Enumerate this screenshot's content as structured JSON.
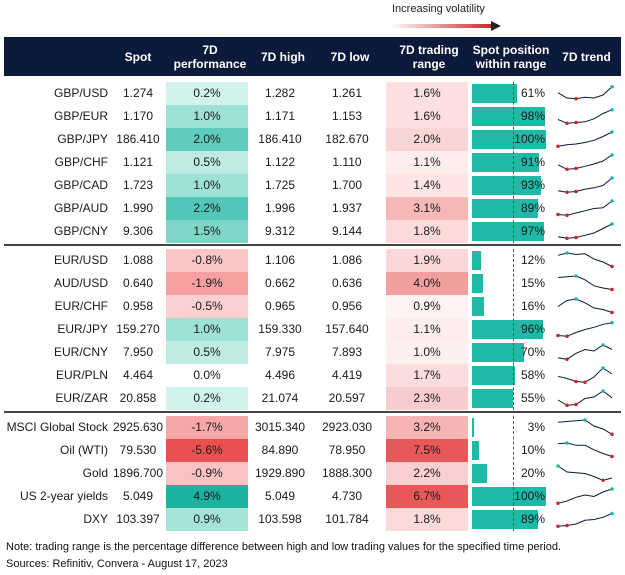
{
  "header_note": "Increasing volatility",
  "columns": {
    "spot": "Spot",
    "perf_line1": "7D",
    "perf_line2": "performance",
    "high": "7D high",
    "low": "7D low",
    "range_line1": "7D trading",
    "range_line2": "range",
    "pos_line1": "Spot position",
    "pos_line2": "within range",
    "trend": "7D trend"
  },
  "groups": [
    {
      "rows": [
        {
          "name": "GBP/USD",
          "spot": "1.274",
          "perf": "0.2%",
          "perf_val": 0.2,
          "high": "1.282",
          "low": "1.261",
          "range": "1.6%",
          "range_val": 1.6,
          "pos": "61%",
          "pos_val": 61,
          "trend": [
            0.55,
            0.2,
            0.15,
            0.25,
            0.2,
            0.4,
            0.95
          ]
        },
        {
          "name": "GBP/EUR",
          "spot": "1.170",
          "perf": "1.0%",
          "perf_val": 1.0,
          "high": "1.171",
          "low": "1.153",
          "range": "1.6%",
          "range_val": 1.6,
          "pos": "98%",
          "pos_val": 98,
          "trend": [
            0.3,
            0.05,
            0.1,
            0.15,
            0.35,
            0.7,
            0.95
          ]
        },
        {
          "name": "GBP/JPY",
          "spot": "186.410",
          "perf": "2.0%",
          "perf_val": 2.0,
          "high": "186.410",
          "low": "182.670",
          "range": "2.0%",
          "range_val": 2.0,
          "pos": "100%",
          "pos_val": 100,
          "trend": [
            0.05,
            0.15,
            0.2,
            0.3,
            0.45,
            0.7,
            1.0
          ]
        },
        {
          "name": "GBP/CHF",
          "spot": "1.121",
          "perf": "0.5%",
          "perf_val": 0.5,
          "high": "1.122",
          "low": "1.110",
          "range": "1.1%",
          "range_val": 1.1,
          "pos": "91%",
          "pos_val": 91,
          "trend": [
            0.35,
            0.05,
            0.1,
            0.25,
            0.4,
            0.6,
            1.0
          ]
        },
        {
          "name": "GBP/CAD",
          "spot": "1.723",
          "perf": "1.0%",
          "perf_val": 1.0,
          "high": "1.725",
          "low": "1.700",
          "range": "1.4%",
          "range_val": 1.4,
          "pos": "93%",
          "pos_val": 93,
          "trend": [
            0.15,
            0.05,
            0.1,
            0.25,
            0.35,
            0.5,
            1.0
          ]
        },
        {
          "name": "GBP/AUD",
          "spot": "1.990",
          "perf": "2.2%",
          "perf_val": 2.2,
          "high": "1.996",
          "low": "1.937",
          "range": "3.1%",
          "range_val": 3.1,
          "pos": "89%",
          "pos_val": 89,
          "trend": [
            0.1,
            0.05,
            0.2,
            0.35,
            0.5,
            0.55,
            1.0
          ]
        },
        {
          "name": "GBP/CNY",
          "spot": "9.306",
          "perf": "1.5%",
          "perf_val": 1.5,
          "high": "9.312",
          "low": "9.144",
          "range": "1.8%",
          "range_val": 1.8,
          "pos": "97%",
          "pos_val": 97,
          "trend": [
            0.15,
            0.05,
            0.1,
            0.25,
            0.4,
            0.7,
            1.0
          ]
        }
      ]
    },
    {
      "rows": [
        {
          "name": "EUR/USD",
          "spot": "1.088",
          "perf": "-0.8%",
          "perf_val": -0.8,
          "high": "1.106",
          "low": "1.086",
          "range": "1.9%",
          "range_val": 1.9,
          "pos": "12%",
          "pos_val": 12,
          "trend": [
            0.85,
            1.0,
            0.9,
            0.95,
            0.6,
            0.4,
            0.1
          ]
        },
        {
          "name": "AUD/USD",
          "spot": "0.640",
          "perf": "-1.9%",
          "perf_val": -1.9,
          "high": "0.662",
          "low": "0.636",
          "range": "4.0%",
          "range_val": 4.0,
          "pos": "15%",
          "pos_val": 15,
          "trend": [
            0.9,
            0.95,
            1.0,
            0.75,
            0.35,
            0.2,
            0.1
          ]
        },
        {
          "name": "EUR/CHF",
          "spot": "0.958",
          "perf": "-0.5%",
          "perf_val": -0.5,
          "high": "0.965",
          "low": "0.956",
          "range": "0.9%",
          "range_val": 0.9,
          "pos": "16%",
          "pos_val": 16,
          "trend": [
            0.5,
            0.9,
            1.0,
            0.75,
            0.4,
            0.3,
            0.1
          ]
        },
        {
          "name": "EUR/JPY",
          "spot": "159.270",
          "perf": "1.0%",
          "perf_val": 1.0,
          "high": "159.330",
          "low": "157.640",
          "range": "1.1%",
          "range_val": 1.1,
          "pos": "96%",
          "pos_val": 96,
          "trend": [
            0.1,
            0.05,
            0.3,
            0.5,
            0.65,
            0.85,
            0.95
          ]
        },
        {
          "name": "EUR/CNY",
          "spot": "7.950",
          "perf": "0.5%",
          "perf_val": 0.5,
          "high": "7.975",
          "low": "7.893",
          "range": "1.0%",
          "range_val": 1.0,
          "pos": "70%",
          "pos_val": 70,
          "trend": [
            0.15,
            0.05,
            0.45,
            0.7,
            0.6,
            1.0,
            0.7
          ]
        },
        {
          "name": "EUR/PLN",
          "spot": "4.464",
          "perf": "0.0%",
          "perf_val": 0.0,
          "high": "4.496",
          "low": "4.419",
          "range": "1.7%",
          "range_val": 1.7,
          "pos": "58%",
          "pos_val": 58,
          "trend": [
            0.45,
            0.3,
            0.1,
            0.05,
            0.4,
            1.0,
            0.6
          ]
        },
        {
          "name": "EUR/ZAR",
          "spot": "20.858",
          "perf": "0.2%",
          "perf_val": 0.2,
          "high": "21.074",
          "low": "20.597",
          "range": "2.3%",
          "range_val": 2.3,
          "pos": "55%",
          "pos_val": 55,
          "trend": [
            0.4,
            0.05,
            0.1,
            0.5,
            0.6,
            1.0,
            0.55
          ]
        }
      ]
    },
    {
      "rows": [
        {
          "name": "MSCI Global Stock",
          "spot": "2925.630",
          "perf": "-1.7%",
          "perf_val": -1.7,
          "high": "3015.340",
          "low": "2923.030",
          "range": "3.2%",
          "range_val": 3.2,
          "pos": "3%",
          "pos_val": 3,
          "trend": [
            0.85,
            0.9,
            0.95,
            1.0,
            0.6,
            0.4,
            0.05
          ]
        },
        {
          "name": "Oil (WTI)",
          "spot": "79.530",
          "perf": "-5.6%",
          "perf_val": -5.6,
          "high": "84.890",
          "low": "78.950",
          "range": "7.5%",
          "range_val": 7.5,
          "pos": "10%",
          "pos_val": 10,
          "trend": [
            0.95,
            1.0,
            0.85,
            0.85,
            0.55,
            0.3,
            0.1
          ]
        },
        {
          "name": "Gold",
          "spot": "1896.700",
          "perf": "-0.9%",
          "perf_val": -0.9,
          "high": "1929.890",
          "low": "1888.300",
          "range": "2.2%",
          "range_val": 2.2,
          "pos": "20%",
          "pos_val": 20,
          "trend": [
            1.0,
            0.6,
            0.55,
            0.5,
            0.3,
            0.05,
            0.2
          ]
        },
        {
          "name": "US 2-year yields",
          "spot": "5.049",
          "perf": "4.9%",
          "perf_val": 4.9,
          "high": "5.049",
          "low": "4.730",
          "range": "6.7%",
          "range_val": 6.7,
          "pos": "100%",
          "pos_val": 100,
          "trend": [
            0.05,
            0.2,
            0.45,
            0.6,
            0.5,
            0.8,
            1.0
          ]
        },
        {
          "name": "DXY",
          "spot": "103.397",
          "perf": "0.9%",
          "perf_val": 0.9,
          "high": "103.598",
          "low": "101.784",
          "range": "1.8%",
          "range_val": 1.8,
          "pos": "89%",
          "pos_val": 89,
          "trend": [
            0.05,
            0.1,
            0.2,
            0.45,
            0.5,
            0.65,
            0.9
          ]
        }
      ]
    }
  ],
  "footnote": "Note: trading range is the percentage difference between high and low trading values for the specified time period.",
  "sources": "Sources: Refinitiv, Convera - August 17, 2023",
  "colors": {
    "header_bg": "#0b1a3a",
    "pos_bar": "#1fb9a8",
    "spark_line": "#0b1a3a",
    "spark_low": "#c62828",
    "spark_high": "#1fb9a8"
  },
  "chart_data": {
    "type": "table",
    "columns": [
      "",
      "Spot",
      "7D performance",
      "7D high",
      "7D low",
      "7D trading range",
      "Spot position within range",
      "7D trend"
    ],
    "rows": [
      [
        "GBP/USD",
        1.274,
        0.2,
        1.282,
        1.261,
        1.6,
        61
      ],
      [
        "GBP/EUR",
        1.17,
        1.0,
        1.171,
        1.153,
        1.6,
        98
      ],
      [
        "GBP/JPY",
        186.41,
        2.0,
        186.41,
        182.67,
        2.0,
        100
      ],
      [
        "GBP/CHF",
        1.121,
        0.5,
        1.122,
        1.11,
        1.1,
        91
      ],
      [
        "GBP/CAD",
        1.723,
        1.0,
        1.725,
        1.7,
        1.4,
        93
      ],
      [
        "GBP/AUD",
        1.99,
        2.2,
        1.996,
        1.937,
        3.1,
        89
      ],
      [
        "GBP/CNY",
        9.306,
        1.5,
        9.312,
        9.144,
        1.8,
        97
      ],
      [
        "EUR/USD",
        1.088,
        -0.8,
        1.106,
        1.086,
        1.9,
        12
      ],
      [
        "AUD/USD",
        0.64,
        -1.9,
        0.662,
        0.636,
        4.0,
        15
      ],
      [
        "EUR/CHF",
        0.958,
        -0.5,
        0.965,
        0.956,
        0.9,
        16
      ],
      [
        "EUR/JPY",
        159.27,
        1.0,
        159.33,
        157.64,
        1.1,
        96
      ],
      [
        "EUR/CNY",
        7.95,
        0.5,
        7.975,
        7.893,
        1.0,
        70
      ],
      [
        "EUR/PLN",
        4.464,
        0.0,
        4.496,
        4.419,
        1.7,
        58
      ],
      [
        "EUR/ZAR",
        20.858,
        0.2,
        21.074,
        20.597,
        2.3,
        55
      ],
      [
        "MSCI Global Stock",
        2925.63,
        -1.7,
        3015.34,
        2923.03,
        3.2,
        3
      ],
      [
        "Oil (WTI)",
        79.53,
        -5.6,
        84.89,
        78.95,
        7.5,
        10
      ],
      [
        "Gold",
        1896.7,
        -0.9,
        1929.89,
        1888.3,
        2.2,
        20
      ],
      [
        "US 2-year yields",
        5.049,
        4.9,
        5.049,
        4.73,
        6.7,
        100
      ],
      [
        "DXY",
        103.397,
        0.9,
        103.598,
        101.784,
        1.8,
        89
      ]
    ]
  }
}
